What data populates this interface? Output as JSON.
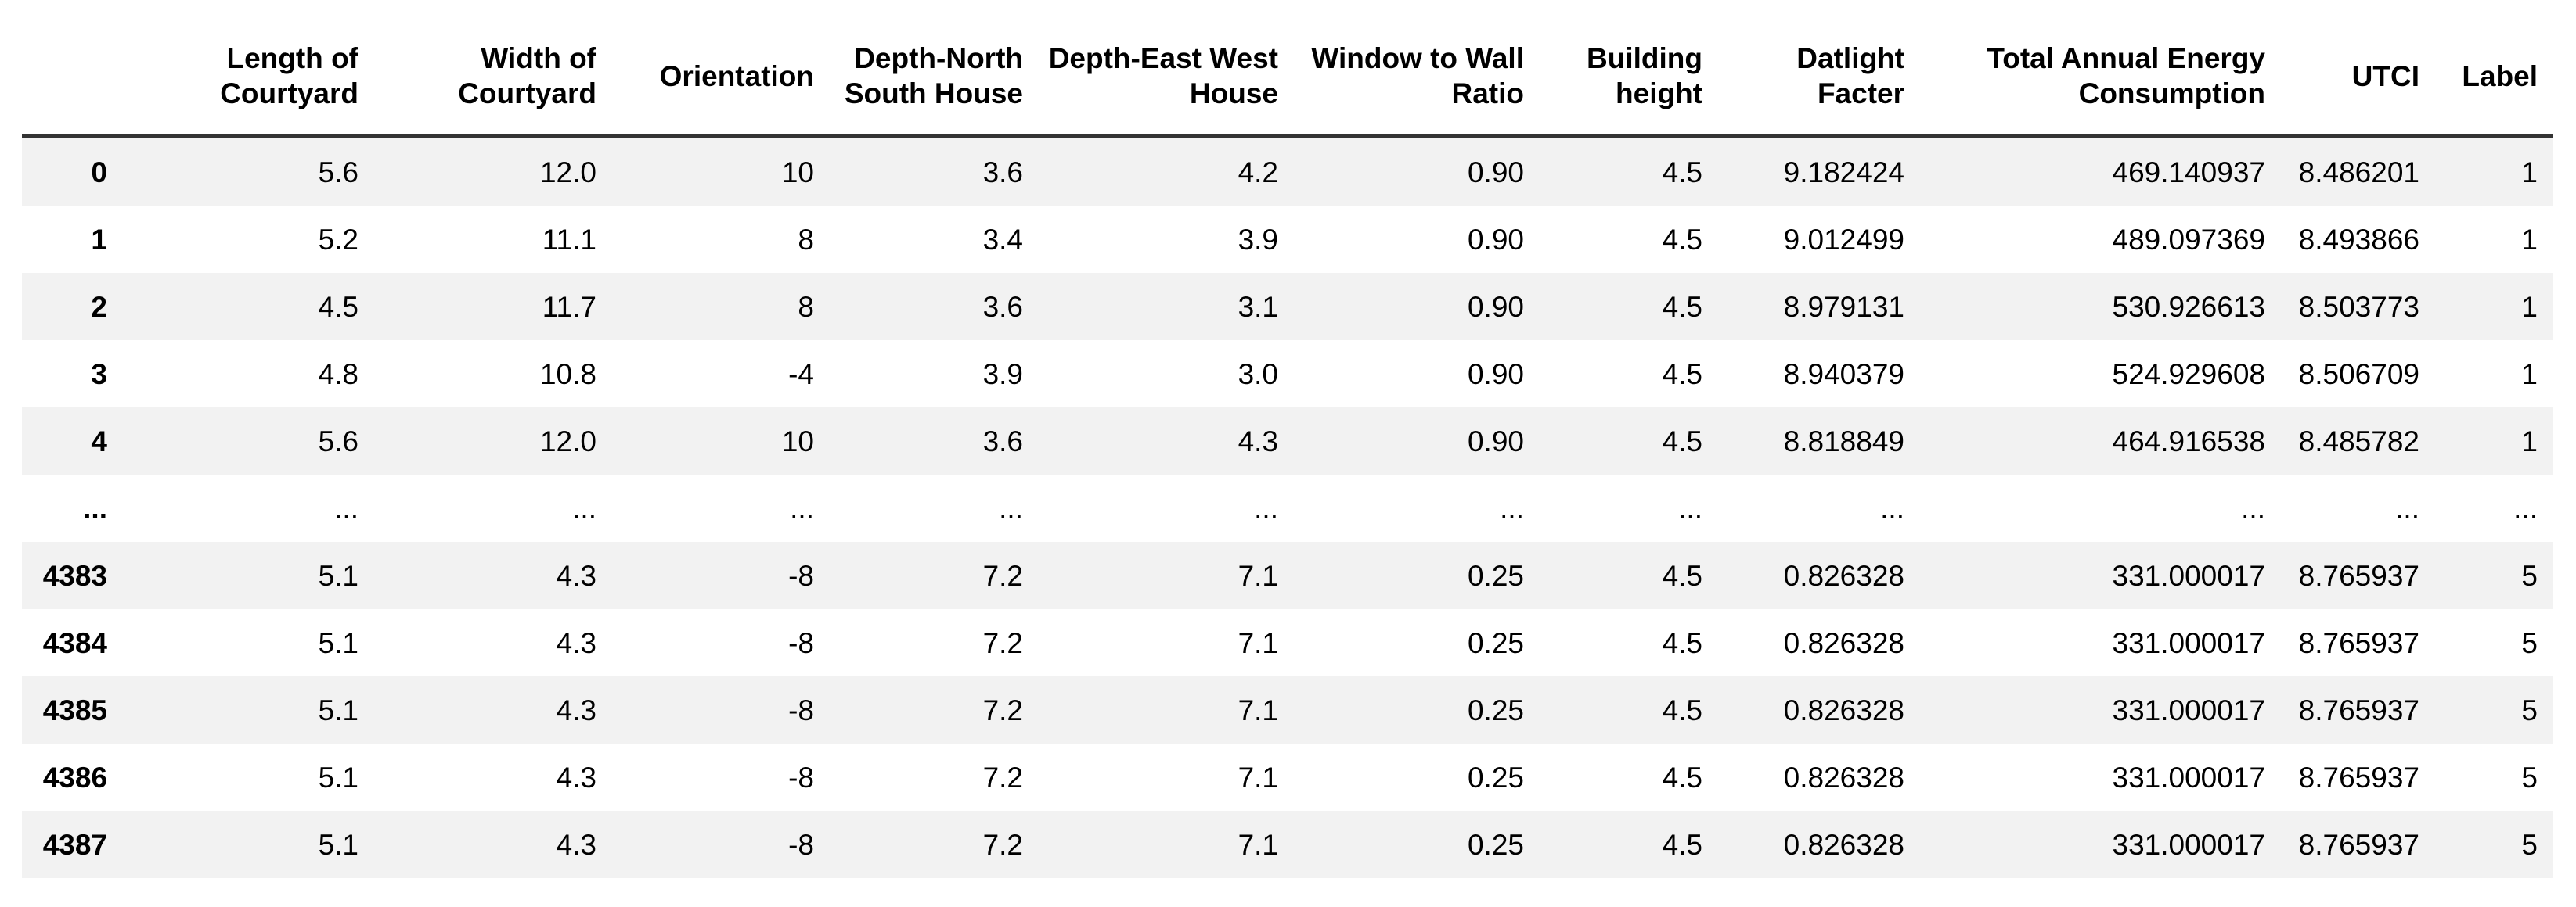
{
  "colors": {
    "stripe": "#f2f2f2",
    "header_border": "#333333",
    "text": "#000000",
    "background": "#ffffff"
  },
  "table": {
    "index_header": "",
    "columns": [
      "Length of Courtyard",
      "Width of Courtyard",
      "Orientation",
      "Depth-North South House",
      "Depth-East West House",
      "Window to Wall Ratio",
      "Building height",
      "Datlight Facter",
      "Total Annual Energy Consumption",
      "UTCI",
      "Label"
    ],
    "rows": [
      {
        "index": "0",
        "values": [
          "5.6",
          "12.0",
          "10",
          "3.6",
          "4.2",
          "0.90",
          "4.5",
          "9.182424",
          "469.140937",
          "8.486201",
          "1"
        ]
      },
      {
        "index": "1",
        "values": [
          "5.2",
          "11.1",
          "8",
          "3.4",
          "3.9",
          "0.90",
          "4.5",
          "9.012499",
          "489.097369",
          "8.493866",
          "1"
        ]
      },
      {
        "index": "2",
        "values": [
          "4.5",
          "11.7",
          "8",
          "3.6",
          "3.1",
          "0.90",
          "4.5",
          "8.979131",
          "530.926613",
          "8.503773",
          "1"
        ]
      },
      {
        "index": "3",
        "values": [
          "4.8",
          "10.8",
          "-4",
          "3.9",
          "3.0",
          "0.90",
          "4.5",
          "8.940379",
          "524.929608",
          "8.506709",
          "1"
        ]
      },
      {
        "index": "4",
        "values": [
          "5.6",
          "12.0",
          "10",
          "3.6",
          "4.3",
          "0.90",
          "4.5",
          "8.818849",
          "464.916538",
          "8.485782",
          "1"
        ]
      },
      {
        "index": "...",
        "values": [
          "...",
          "...",
          "...",
          "...",
          "...",
          "...",
          "...",
          "...",
          "...",
          "...",
          "..."
        ]
      },
      {
        "index": "4383",
        "values": [
          "5.1",
          "4.3",
          "-8",
          "7.2",
          "7.1",
          "0.25",
          "4.5",
          "0.826328",
          "331.000017",
          "8.765937",
          "5"
        ]
      },
      {
        "index": "4384",
        "values": [
          "5.1",
          "4.3",
          "-8",
          "7.2",
          "7.1",
          "0.25",
          "4.5",
          "0.826328",
          "331.000017",
          "8.765937",
          "5"
        ]
      },
      {
        "index": "4385",
        "values": [
          "5.1",
          "4.3",
          "-8",
          "7.2",
          "7.1",
          "0.25",
          "4.5",
          "0.826328",
          "331.000017",
          "8.765937",
          "5"
        ]
      },
      {
        "index": "4386",
        "values": [
          "5.1",
          "4.3",
          "-8",
          "7.2",
          "7.1",
          "0.25",
          "4.5",
          "0.826328",
          "331.000017",
          "8.765937",
          "5"
        ]
      },
      {
        "index": "4387",
        "values": [
          "5.1",
          "4.3",
          "-8",
          "7.2",
          "7.1",
          "0.25",
          "4.5",
          "0.826328",
          "331.000017",
          "8.765937",
          "5"
        ]
      }
    ]
  }
}
